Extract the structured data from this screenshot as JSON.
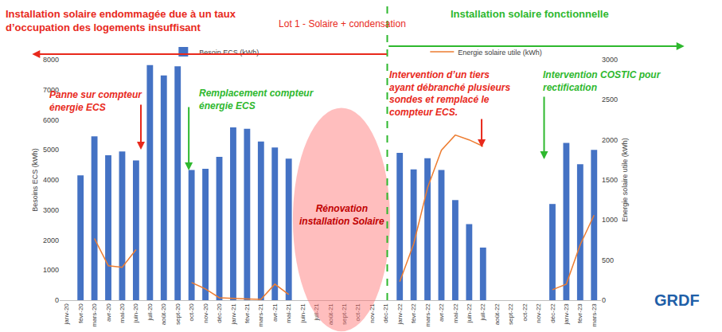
{
  "chart_data": {
    "type": "bar",
    "title": "Lot 1 - Solaire + condensation",
    "categories": [
      "janv-20",
      "févr-20",
      "mars-20",
      "avr-20",
      "mai-20",
      "juin-20",
      "juil-20",
      "août-20",
      "sept-20",
      "oct-20",
      "nov-20",
      "déc-20",
      "janv-21",
      "févr-21",
      "mars-21",
      "avr-21",
      "mai-21",
      "juin-21",
      "juil-21",
      "août-21",
      "sept-21",
      "oct-21",
      "nov-21",
      "déc-21",
      "janv-22",
      "févr-22",
      "mars-22",
      "avr-22",
      "mai-22",
      "juin-22",
      "juil-22",
      "août-22",
      "sept-22",
      "oct-22",
      "nov-22",
      "déc-22",
      "janv-23",
      "févr-23",
      "mars-23"
    ],
    "series": [
      {
        "name": "Besoin ECS (kWh)",
        "type": "bar",
        "color": "#4472c4",
        "values": [
          null,
          4150,
          5450,
          4820,
          4950,
          4650,
          7820,
          7480,
          7780,
          4330,
          4370,
          4770,
          5750,
          5700,
          5280,
          5080,
          4710,
          null,
          null,
          null,
          null,
          null,
          null,
          null,
          4900,
          4350,
          4720,
          4330,
          3330,
          2530,
          1750,
          null,
          null,
          null,
          null,
          3200,
          5230,
          4520,
          5000
        ]
      },
      {
        "name": "Energie solaire utile (kWh)",
        "type": "line",
        "color": "#ed7d31",
        "axis": "y2",
        "values": [
          null,
          null,
          770,
          430,
          410,
          630,
          null,
          null,
          null,
          220,
          140,
          30,
          20,
          15,
          10,
          200,
          70,
          null,
          null,
          null,
          null,
          null,
          null,
          null,
          230,
          700,
          1400,
          1870,
          2060,
          2000,
          1920,
          null,
          null,
          null,
          null,
          130,
          200,
          690,
          1060
        ]
      }
    ],
    "y_label": "Besoins ECS (kWh)",
    "y2_label": "Energie solaire utile (kWh)",
    "ylim": [
      0,
      8000
    ],
    "yticks": [
      0,
      1000,
      2000,
      3000,
      4000,
      5000,
      6000,
      7000,
      8000
    ],
    "y2lim": [
      0,
      3000
    ],
    "y2ticks": [
      0,
      500,
      1000,
      1500,
      2000,
      2500,
      3000
    ],
    "grid": false,
    "legend": "top",
    "annotations": [
      {
        "text": [
          "Installation solaire endommagée due à un taux",
          "d’occupation des logements insuffisant"
        ],
        "color": "#e8291c"
      },
      {
        "text": [
          "Installation solaire fonctionnelle"
        ],
        "color": "#2eb82e"
      },
      {
        "text": [
          "Panne sur compteur",
          "énergie ECS"
        ],
        "color": "#e8291c"
      },
      {
        "text": [
          "Remplacement compteur",
          "énergie ECS"
        ],
        "color": "#2eb82e"
      },
      {
        "text": [
          "Rénovation",
          "installation Solaire"
        ],
        "color": "#c00000"
      },
      {
        "text": [
          "Intervention d’un tiers",
          "ayant débranché plusieurs",
          "sondes et remplacé le",
          "compteur ECS."
        ],
        "color": "#e8291c"
      },
      {
        "text": [
          "Intervention COSTIC pour",
          "rectification"
        ],
        "color": "#2eb82e"
      },
      {
        "text": [
          "GRDF"
        ],
        "color": "#1f5fa8"
      }
    ]
  }
}
